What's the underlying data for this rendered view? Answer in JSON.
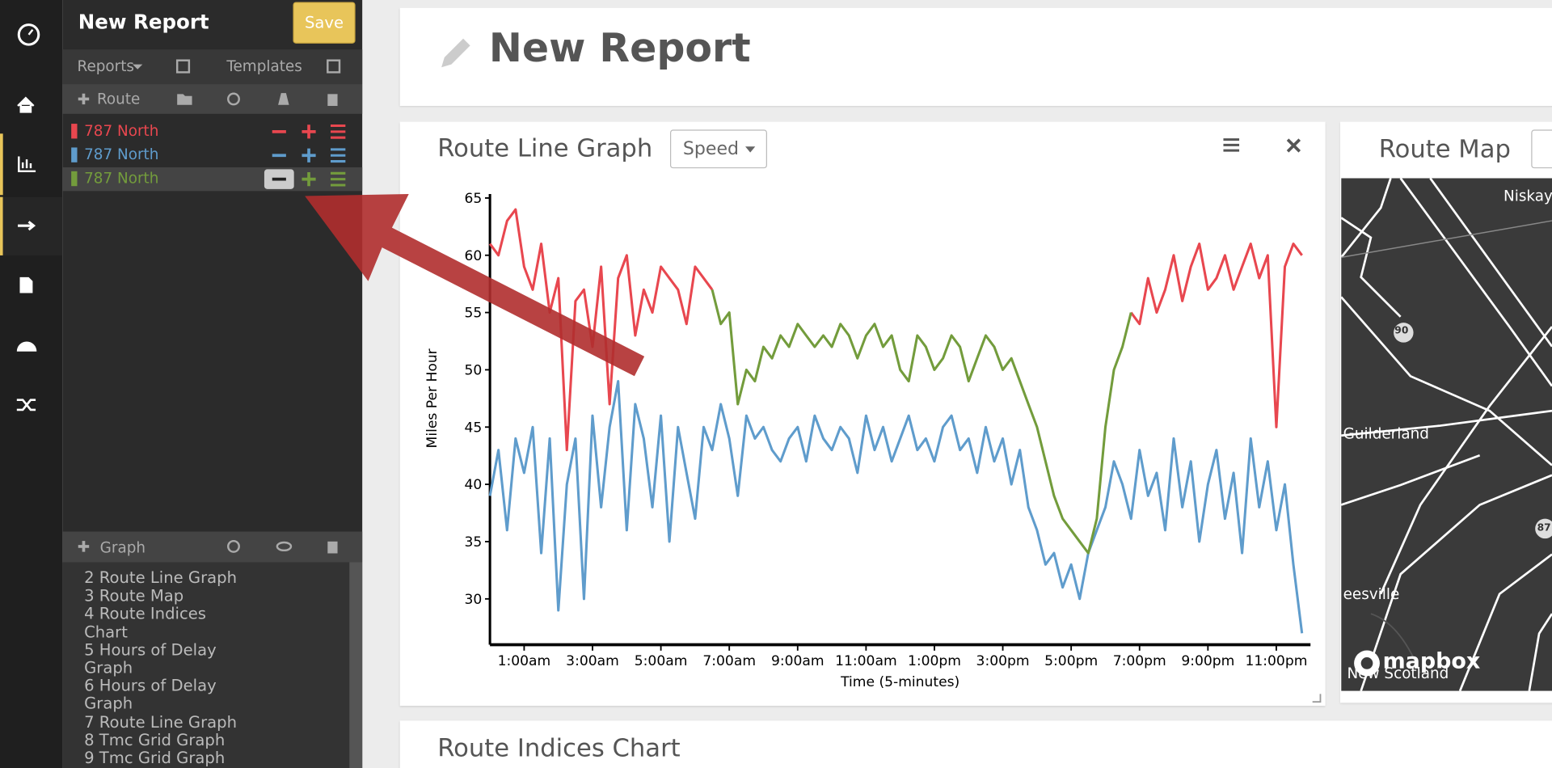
{
  "sidebar": {
    "title": "New Report",
    "save": "Save",
    "reports": "Reports",
    "templates": "Templates",
    "route": "Route",
    "graph": "Graph",
    "graph_list": [
      "2 Route Line Graph",
      "3 Route Map",
      "4 Route Indices",
      "Chart",
      "5 Hours of Delay",
      "Graph",
      "6 Hours of Delay",
      "Graph",
      "7 Route Line Graph",
      "8 Tmc Grid Graph",
      "9 Tmc Grid Graph"
    ]
  },
  "header": {
    "title": "New Report"
  },
  "panels": {
    "line_graph": {
      "title": "Route Line Graph",
      "dropdown": "Speed"
    },
    "map": {
      "title": "Route Map",
      "labels": [
        "Niskay",
        "Guilderland",
        "eesville",
        "Ne",
        "New Scotland"
      ],
      "shields": [
        "90",
        "87"
      ],
      "logo": "mapbox"
    },
    "indices": {
      "title": "Route Indices Chart"
    }
  },
  "chart_data": {
    "type": "line",
    "x_label": "Time (5-minutes)",
    "y_label": "Miles Per Hour",
    "x": [
      0,
      0.25,
      0.5,
      0.75,
      1,
      1.25,
      1.5,
      1.75,
      2,
      2.25,
      2.5,
      2.75,
      3,
      3.25,
      3.5,
      3.75,
      4,
      4.25,
      4.5,
      4.75,
      5,
      5.25,
      5.5,
      5.75,
      6,
      6.25,
      6.5,
      6.75,
      7,
      7.25,
      7.5,
      7.75,
      8,
      8.25,
      8.5,
      8.75,
      9,
      9.25,
      9.5,
      9.75,
      10,
      10.25,
      10.5,
      10.75,
      11,
      11.25,
      11.5,
      11.75,
      12,
      12.25,
      12.5,
      12.75,
      13,
      13.25,
      13.5,
      13.75,
      14,
      14.25,
      14.5,
      14.75,
      15,
      15.25,
      15.5,
      15.75,
      16,
      16.25,
      16.5,
      16.75,
      17,
      17.25,
      17.5,
      17.75,
      18,
      18.25,
      18.5,
      18.75,
      19,
      19.25,
      19.5,
      19.75,
      20,
      20.25,
      20.5,
      20.75,
      21,
      21.25,
      21.5,
      21.75,
      22,
      22.25,
      22.5,
      22.75,
      23,
      23.25,
      23.5,
      23.75
    ],
    "xlim": [
      0,
      24
    ],
    "ylim": [
      26,
      65
    ],
    "xticks": [
      {
        "value": 1,
        "label": "1:00am"
      },
      {
        "value": 3,
        "label": "3:00am"
      },
      {
        "value": 5,
        "label": "5:00am"
      },
      {
        "value": 7,
        "label": "7:00am"
      },
      {
        "value": 9,
        "label": "9:00am"
      },
      {
        "value": 11,
        "label": "11:00am"
      },
      {
        "value": 13,
        "label": "1:00pm"
      },
      {
        "value": 15,
        "label": "3:00pm"
      },
      {
        "value": 17,
        "label": "5:00pm"
      },
      {
        "value": 19,
        "label": "7:00pm"
      },
      {
        "value": 21,
        "label": "9:00pm"
      },
      {
        "value": 23,
        "label": "11:00pm"
      }
    ],
    "yticks": [
      30,
      35,
      40,
      45,
      50,
      55,
      60,
      65
    ],
    "series": [
      {
        "name": "787 North",
        "color": "#e8474f",
        "values": [
          61,
          60,
          63,
          64,
          59,
          57,
          61,
          55,
          58,
          43,
          56,
          57,
          52,
          59,
          47,
          58,
          60,
          53,
          57,
          55,
          59,
          58,
          57,
          54,
          59,
          58,
          57,
          null,
          null,
          null,
          null,
          null,
          null,
          null,
          null,
          null,
          null,
          null,
          null,
          null,
          null,
          null,
          null,
          null,
          null,
          null,
          null,
          null,
          null,
          null,
          null,
          null,
          null,
          null,
          null,
          null,
          null,
          null,
          null,
          null,
          null,
          null,
          null,
          null,
          null,
          null,
          null,
          null,
          null,
          null,
          null,
          null,
          null,
          null,
          null,
          55,
          54,
          58,
          55,
          57,
          60,
          56,
          59,
          61,
          57,
          58,
          60,
          57,
          59,
          61,
          58,
          60,
          45,
          59,
          61,
          60
        ]
      },
      {
        "name": "787 North",
        "color": "#5f9ccc",
        "values": [
          39,
          43,
          36,
          44,
          41,
          45,
          34,
          44,
          29,
          40,
          44,
          30,
          46,
          38,
          45,
          49,
          36,
          47,
          44,
          38,
          46,
          35,
          45,
          41,
          37,
          45,
          43,
          47,
          44,
          39,
          46,
          44,
          45,
          43,
          42,
          44,
          45,
          42,
          46,
          44,
          43,
          45,
          44,
          41,
          46,
          43,
          45,
          42,
          44,
          46,
          43,
          44,
          42,
          45,
          46,
          43,
          44,
          41,
          45,
          42,
          44,
          40,
          43,
          38,
          36,
          33,
          34,
          31,
          33,
          30,
          34,
          36,
          38,
          42,
          40,
          37,
          43,
          39,
          41,
          36,
          44,
          38,
          42,
          35,
          40,
          43,
          37,
          41,
          34,
          44,
          38,
          42,
          36,
          40,
          33,
          27
        ]
      },
      {
        "name": "787 North",
        "color": "#739c3c",
        "values": [
          null,
          null,
          null,
          null,
          null,
          null,
          null,
          null,
          null,
          null,
          null,
          null,
          null,
          null,
          null,
          null,
          null,
          null,
          null,
          null,
          null,
          null,
          null,
          null,
          null,
          null,
          57,
          54,
          55,
          47,
          50,
          49,
          52,
          51,
          53,
          52,
          54,
          53,
          52,
          53,
          52,
          54,
          53,
          51,
          53,
          54,
          52,
          53,
          50,
          49,
          53,
          52,
          50,
          51,
          53,
          52,
          49,
          51,
          53,
          52,
          50,
          51,
          49,
          47,
          45,
          42,
          39,
          37,
          36,
          35,
          34,
          37,
          45,
          50,
          52,
          55,
          null,
          null,
          null,
          null,
          null,
          null,
          null,
          null,
          null,
          null,
          null,
          null,
          null,
          null,
          null,
          null,
          null,
          null,
          null,
          null
        ]
      }
    ]
  }
}
